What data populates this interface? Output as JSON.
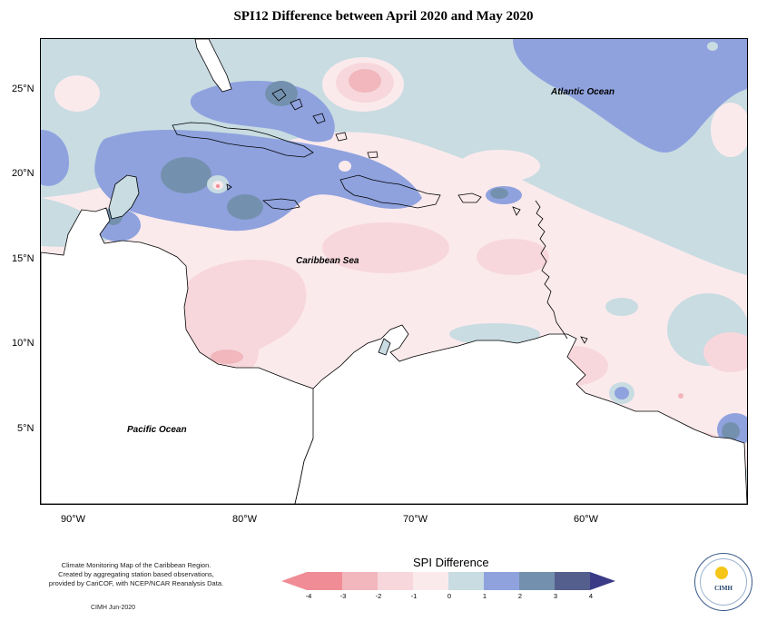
{
  "title": "SPI12 Difference between April 2020 and May 2020",
  "map": {
    "lat_labels": [
      "25°N",
      "20°N",
      "15°N",
      "10°N",
      "5°N"
    ],
    "lon_labels": [
      "90°W",
      "80°W",
      "70°W",
      "60°W"
    ],
    "ocean_labels": {
      "atlantic": "Atlantic Ocean",
      "caribbean": "Caribbean Sea",
      "pacific": "Pacific Ocean"
    }
  },
  "legend": {
    "title": "SPI Difference",
    "ticks": [
      "-4",
      "-3",
      "-2",
      "-1",
      "0",
      "1",
      "2",
      "3",
      "4"
    ],
    "colors": [
      "#f08c95",
      "#f1b7bd",
      "#f7d7dc",
      "#fbeaec",
      "#c8dce2",
      "#8fa2de",
      "#7391ae",
      "#545f8e",
      "#3a3a86"
    ]
  },
  "credits": {
    "lines": [
      "Climate Monitoring Map of the Caribbean Region.",
      "Created by aggregating station based observations,",
      "provided by CariCOF, with NCEP/NCAR Reanalysis Data."
    ],
    "date": "CIMH  Jun-2020"
  },
  "logo": {
    "text": "CIMH"
  }
}
